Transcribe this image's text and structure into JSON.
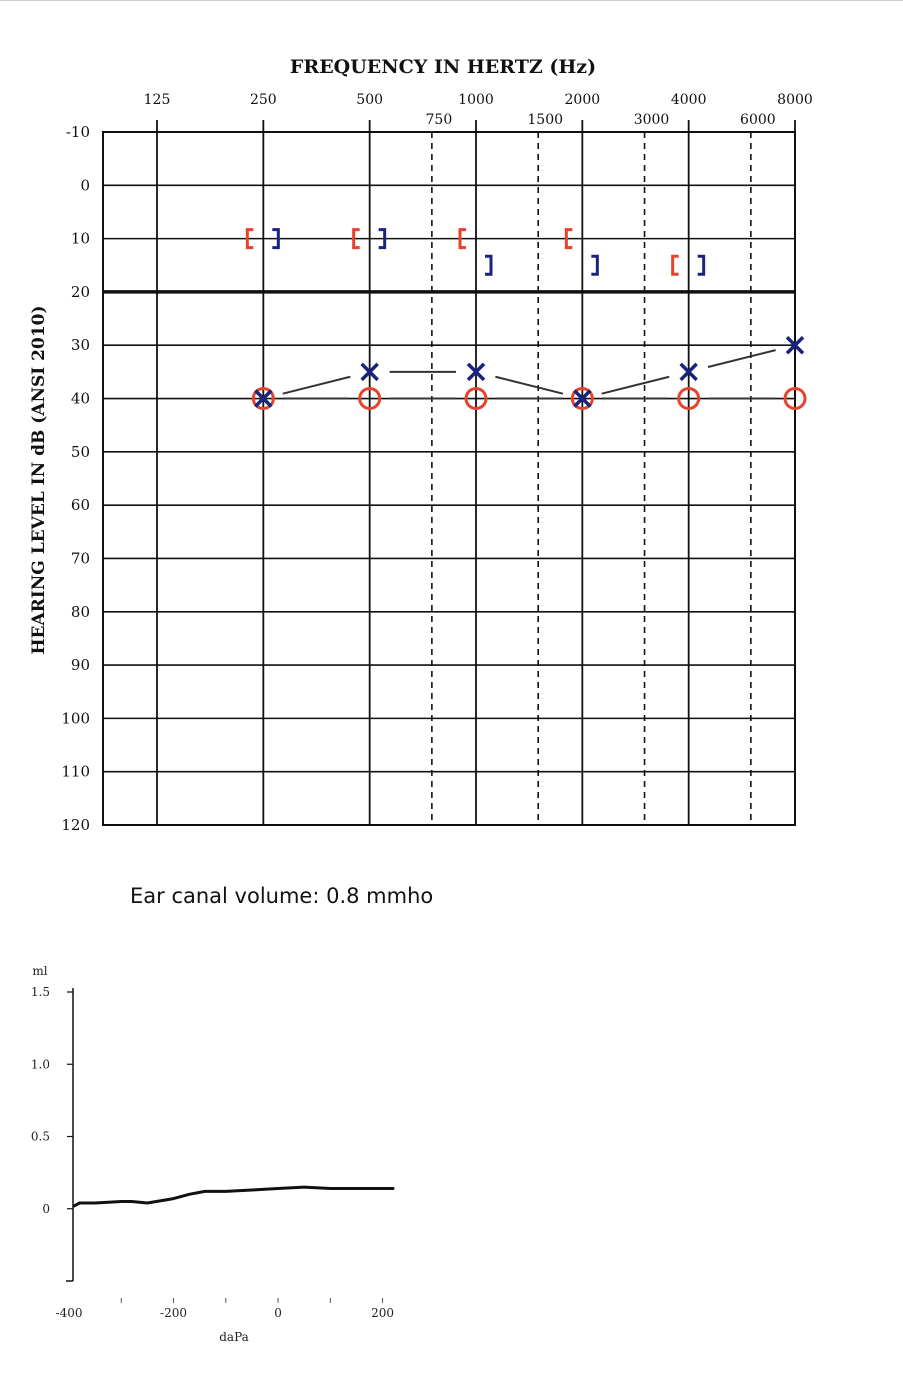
{
  "colors": {
    "right_ear": "#e8412c",
    "left_ear": "#1a237e",
    "grid": "#111111",
    "line": "#333333"
  },
  "chart_data": [
    {
      "type": "line",
      "title": "FREQUENCY IN HERTZ (Hz)",
      "ylabel": "HEARING LEVEL IN dB (ANSI 2010)",
      "x_scale": "log2",
      "ylim": [
        -10,
        120
      ],
      "y_inverted": true,
      "x_major_ticks": [
        125,
        250,
        500,
        1000,
        2000,
        4000,
        8000
      ],
      "x_major_labels": [
        "125",
        "250",
        "500",
        "1000",
        "2000",
        "4000",
        "8000"
      ],
      "x_minor_ticks": [
        750,
        1500,
        3000,
        6000
      ],
      "x_minor_labels": [
        "750",
        "1500",
        "3000",
        "6000"
      ],
      "y_ticks": [
        -10,
        0,
        10,
        20,
        30,
        40,
        50,
        60,
        70,
        80,
        90,
        100,
        110,
        120
      ],
      "y_tick_labels": [
        "-10",
        "0",
        "10",
        "20",
        "30",
        "40",
        "50",
        "60",
        "70",
        "80",
        "90",
        "100",
        "110",
        "120"
      ],
      "emphasized_y": 20,
      "grid": true,
      "series": [
        {
          "marker": "O",
          "ear": "right",
          "connected": true,
          "x": [
            250,
            500,
            1000,
            2000,
            4000,
            8000
          ],
          "y": [
            40,
            40,
            40,
            40,
            40,
            40
          ]
        },
        {
          "marker": "X",
          "ear": "left",
          "connected": true,
          "x": [
            250,
            500,
            1000,
            2000,
            4000,
            8000
          ],
          "y": [
            40,
            35,
            35,
            40,
            35,
            30
          ]
        },
        {
          "marker": "[",
          "ear": "right",
          "connected": false,
          "x": [
            250,
            500,
            1000,
            2000,
            4000
          ],
          "y": [
            10,
            10,
            10,
            10,
            15
          ]
        },
        {
          "marker": "]",
          "ear": "left",
          "connected": false,
          "x": [
            250,
            500,
            1000,
            2000,
            4000
          ],
          "y": [
            10,
            10,
            15,
            15,
            15
          ]
        }
      ]
    },
    {
      "type": "line",
      "ylabel": "ml",
      "xlabel": "daPa",
      "xlim": [
        -400,
        220
      ],
      "ylim": [
        -0.5,
        1.5
      ],
      "x_ticks": [
        -400,
        -200,
        0,
        200
      ],
      "x_tick_labels": [
        "-400",
        "-200",
        "0",
        "200"
      ],
      "y_ticks": [
        0,
        0.5,
        1.0,
        1.5
      ],
      "y_tick_labels": [
        "0",
        "0.5",
        "1.0",
        "1.5"
      ],
      "grid": false,
      "series": [
        {
          "x": [
            -390,
            -380,
            -350,
            -300,
            -280,
            -250,
            -200,
            -170,
            -140,
            -100,
            -50,
            0,
            50,
            100,
            150,
            200,
            220
          ],
          "y": [
            0.02,
            0.04,
            0.04,
            0.05,
            0.05,
            0.04,
            0.07,
            0.1,
            0.12,
            0.12,
            0.13,
            0.14,
            0.15,
            0.14,
            0.14,
            0.14,
            0.14
          ]
        }
      ]
    }
  ],
  "volume_label": "Ear canal volume: 0.8 mmho"
}
